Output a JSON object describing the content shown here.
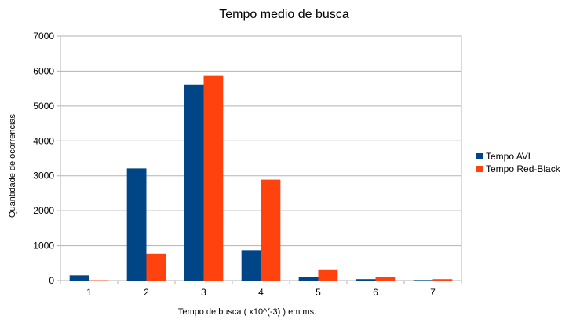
{
  "chart_data": {
    "type": "bar",
    "title": "Tempo medio de busca",
    "xlabel": "Tempo de busca ( x10^(-3) ) em ms.",
    "ylabel": "Quantidade de ocorrencias",
    "categories": [
      "1",
      "2",
      "3",
      "4",
      "5",
      "6",
      "7"
    ],
    "ylim": [
      0,
      7000
    ],
    "yticks": [
      "0",
      "1000",
      "2000",
      "3000",
      "4000",
      "5000",
      "6000",
      "7000"
    ],
    "grid": true,
    "legend_position": "right",
    "series": [
      {
        "name": "Tempo AVL",
        "color": "#004586",
        "values": [
          150,
          3210,
          5610,
          870,
          110,
          40,
          15
        ]
      },
      {
        "name": "Tempo Red-Black",
        "color": "#ff420e",
        "values": [
          10,
          770,
          5860,
          2890,
          320,
          90,
          40
        ]
      }
    ]
  }
}
